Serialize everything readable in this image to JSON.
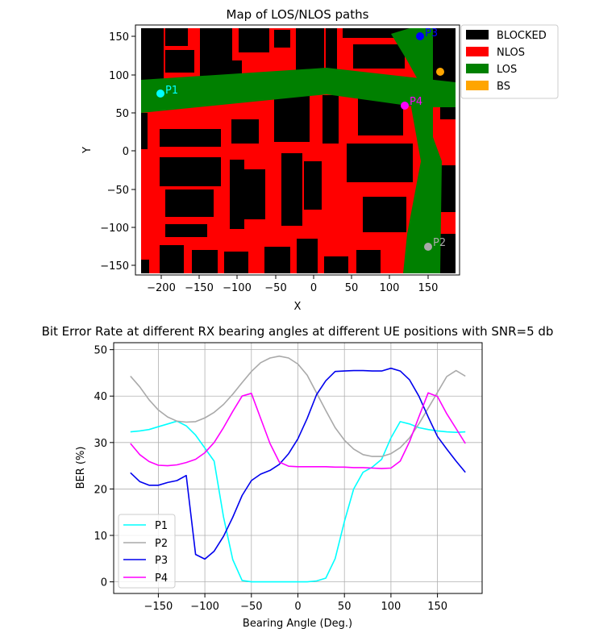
{
  "chart_data": [
    {
      "type": "map",
      "title": "Map of LOS/NLOS paths",
      "xlabel": "X",
      "ylabel": "Y",
      "xlim": [
        -232,
        187
      ],
      "ylim": [
        -162,
        162
      ],
      "x_ticks": [
        -200,
        -150,
        -100,
        -50,
        0,
        50,
        100,
        150
      ],
      "y_ticks": [
        -150,
        -100,
        -50,
        0,
        50,
        100,
        150
      ],
      "grid": false,
      "legend_position": "outside top-right",
      "legend": [
        {
          "label": "BLOCKED",
          "color": "#000000"
        },
        {
          "label": "NLOS",
          "color": "#ff0000"
        },
        {
          "label": "LOS",
          "color": "#008000"
        },
        {
          "label": "BS",
          "color": "#ffa500"
        }
      ],
      "base_station": {
        "x": 166,
        "y": 104,
        "color": "#ffa500"
      },
      "points": [
        {
          "label": "P1",
          "x": -200,
          "y": 76,
          "color": "#00ffff"
        },
        {
          "label": "P2",
          "x": 150,
          "y": -125,
          "color": "#a9a9a9"
        },
        {
          "label": "P3",
          "x": 140,
          "y": 150,
          "color": "#0000ff"
        },
        {
          "label": "P4",
          "x": 120,
          "y": 61,
          "color": "#ff00ff"
        }
      ]
    },
    {
      "type": "line",
      "title": "Bit Error Rate at different RX bearing angles at different UE positions with SNR=5 db",
      "xlabel": "Bearing Angle (Deg.)",
      "ylabel": "BER (%)",
      "xlim": [
        -198,
        198
      ],
      "ylim": [
        -2.5,
        51.5
      ],
      "x_ticks": [
        -150,
        -100,
        -50,
        0,
        50,
        100,
        150
      ],
      "y_ticks": [
        0,
        10,
        20,
        30,
        40,
        50
      ],
      "grid": true,
      "legend_position": "lower left",
      "x": [
        -180,
        -170,
        -160,
        -150,
        -140,
        -130,
        -120,
        -110,
        -100,
        -90,
        -80,
        -70,
        -60,
        -50,
        -40,
        -30,
        -20,
        -10,
        0,
        10,
        20,
        30,
        40,
        50,
        60,
        70,
        80,
        90,
        100,
        110,
        120,
        130,
        140,
        150,
        160,
        170,
        180
      ],
      "series": [
        {
          "name": "P1",
          "color": "#00ffff",
          "values": [
            32.3,
            32.5,
            32.8,
            33.4,
            34.0,
            34.6,
            33.6,
            31.6,
            28.8,
            26.0,
            14.0,
            4.8,
            0.3,
            0.0,
            0.0,
            0.0,
            0.0,
            0.0,
            0.0,
            0.0,
            0.2,
            0.8,
            5.0,
            13.0,
            20.0,
            23.6,
            24.7,
            26.4,
            31.0,
            34.5,
            34.0,
            33.2,
            32.8,
            32.5,
            32.3,
            32.2,
            32.3
          ]
        },
        {
          "name": "P2",
          "color": "#a9a9a9",
          "values": [
            44.3,
            42.0,
            39.2,
            37.0,
            35.5,
            34.6,
            34.4,
            34.5,
            35.3,
            36.5,
            38.2,
            40.4,
            42.9,
            45.3,
            47.2,
            48.2,
            48.6,
            48.2,
            46.9,
            44.5,
            40.7,
            36.9,
            33.2,
            30.5,
            28.6,
            27.4,
            27.0,
            27.0,
            27.6,
            28.9,
            31.0,
            34.0,
            37.4,
            40.8,
            44.2,
            45.5,
            44.3
          ]
        },
        {
          "name": "P3",
          "color": "#0000ee",
          "values": [
            23.5,
            21.6,
            20.8,
            20.8,
            21.4,
            21.8,
            22.9,
            5.9,
            4.9,
            6.6,
            9.8,
            13.9,
            18.6,
            21.8,
            23.2,
            24.0,
            25.3,
            27.6,
            30.8,
            35.2,
            40.3,
            43.3,
            45.3,
            45.4,
            45.5,
            45.5,
            45.4,
            45.4,
            46.0,
            45.4,
            43.5,
            40.0,
            35.5,
            31.3,
            28.6,
            26.0,
            23.6
          ]
        },
        {
          "name": "P4",
          "color": "#ff00ff",
          "values": [
            29.8,
            27.4,
            25.9,
            25.1,
            25.0,
            25.2,
            25.7,
            26.4,
            27.8,
            30.0,
            33.2,
            36.7,
            40.0,
            40.6,
            35.2,
            29.8,
            25.8,
            24.9,
            24.8,
            24.8,
            24.8,
            24.8,
            24.7,
            24.7,
            24.6,
            24.6,
            24.5,
            24.4,
            24.5,
            26.0,
            30.2,
            35.5,
            40.7,
            39.9,
            36.2,
            33.0,
            29.8
          ]
        }
      ]
    }
  ]
}
